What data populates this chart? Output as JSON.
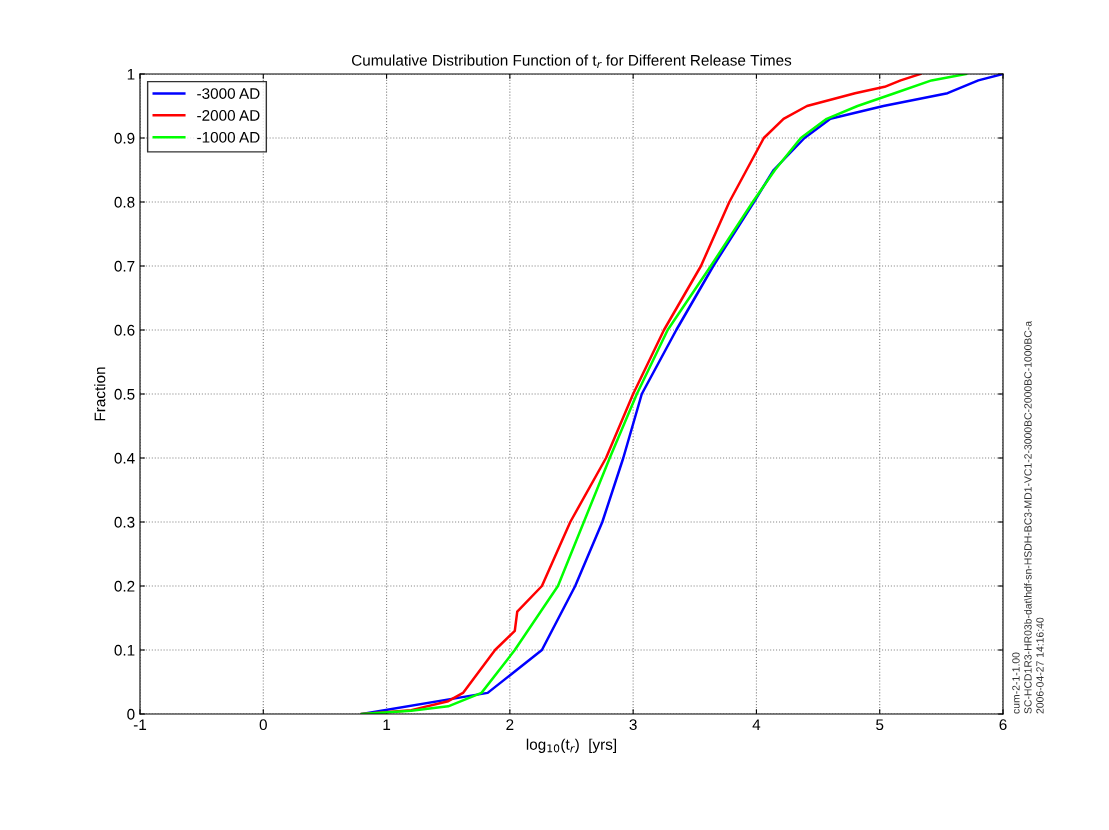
{
  "chart_data": {
    "type": "line",
    "title": "Cumulative Distribution Function of t$_{r}$ for Different Release Times",
    "xlabel": "log$_{10}$(t$_{r}$)  [yrs]",
    "ylabel": "Fraction",
    "xlim": [
      -1,
      6
    ],
    "xticks": [
      -1,
      0,
      1,
      2,
      3,
      4,
      5,
      6
    ],
    "ylim": [
      0,
      1
    ],
    "yticks": [
      0,
      0.1,
      0.2,
      0.3,
      0.4,
      0.5,
      0.6,
      0.7,
      0.8,
      0.9,
      1
    ],
    "grid": true,
    "legend": "top left",
    "line_style": "solid",
    "marker": "none",
    "annotations": [
      "cum-2-1-1.00",
      "SC-HCD1R3-HR03b-dat\\hdf-sn-HSDH-BC3-MD1-VC1-2-3000BC-2000BC-1000BC-a",
      "2006-04-27 14:16:40"
    ],
    "series": [
      {
        "name": "-3000 AD",
        "color": "#0000ff",
        "x": [
          0.8,
          1.82,
          2.26,
          2.53,
          2.75,
          2.92,
          3.07,
          3.35,
          3.65,
          3.98,
          4.14,
          4.39,
          4.6,
          5.03,
          5.55,
          5.8,
          6.0
        ],
        "values": [
          0,
          0.033,
          0.1,
          0.2,
          0.3,
          0.4,
          0.5,
          0.6,
          0.7,
          0.8,
          0.85,
          0.9,
          0.93,
          0.95,
          0.97,
          0.99,
          1.0
        ]
      },
      {
        "name": "-2000 AD",
        "color": "#ff0000",
        "x": [
          0.8,
          1.2,
          1.5,
          1.62,
          1.88,
          2.04,
          2.06,
          2.26,
          2.49,
          2.78,
          3.0,
          3.25,
          3.55,
          3.78,
          3.92,
          4.06,
          4.22,
          4.41,
          4.8,
          5.04,
          5.17,
          5.33
        ],
        "values": [
          0,
          0.006,
          0.02,
          0.033,
          0.1,
          0.13,
          0.16,
          0.2,
          0.3,
          0.4,
          0.5,
          0.6,
          0.7,
          0.8,
          0.85,
          0.9,
          0.93,
          0.95,
          0.97,
          0.98,
          0.99,
          1.0
        ]
      },
      {
        "name": "-1000 AD",
        "color": "#00ff00",
        "x": [
          0.8,
          1.2,
          1.5,
          1.77,
          2.04,
          2.39,
          2.6,
          2.81,
          3.03,
          3.28,
          3.63,
          3.97,
          4.15,
          4.36,
          4.57,
          4.82,
          5.12,
          5.42,
          5.7
        ],
        "values": [
          0,
          0.005,
          0.012,
          0.033,
          0.1,
          0.2,
          0.3,
          0.4,
          0.5,
          0.6,
          0.7,
          0.8,
          0.85,
          0.9,
          0.93,
          0.95,
          0.97,
          0.99,
          1.0
        ]
      }
    ]
  }
}
